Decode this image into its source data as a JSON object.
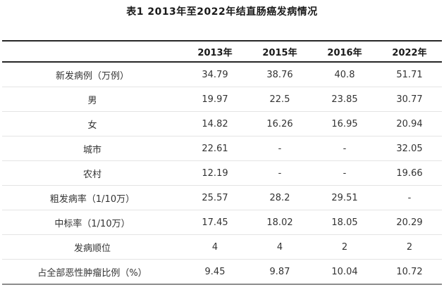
{
  "chart_data": {
    "type": "table",
    "title": "表1 2013年至2022年结直肠癌发病情况",
    "columns": [
      "",
      "2013年",
      "2015年",
      "2016年",
      "2022年"
    ],
    "rows": [
      {
        "label": "新发病例（万例）",
        "values": [
          "34.79",
          "38.76",
          "40.8",
          "51.71"
        ]
      },
      {
        "label": "男",
        "values": [
          "19.97",
          "22.5",
          "23.85",
          "30.77"
        ]
      },
      {
        "label": "女",
        "values": [
          "14.82",
          "16.26",
          "16.95",
          "20.94"
        ]
      },
      {
        "label": "城市",
        "values": [
          "22.61",
          "-",
          "-",
          "32.05"
        ]
      },
      {
        "label": "农村",
        "values": [
          "12.19",
          "-",
          "-",
          "19.66"
        ]
      },
      {
        "label": "粗发病率（1/10万）",
        "values": [
          "25.57",
          "28.2",
          "29.51",
          "-"
        ]
      },
      {
        "label": "中标率（1/10万）",
        "values": [
          "17.45",
          "18.02",
          "18.05",
          "20.29"
        ]
      },
      {
        "label": "发病顺位",
        "values": [
          "4",
          "4",
          "2",
          "2"
        ]
      },
      {
        "label": "占全部恶性肿瘤比例（%）",
        "values": [
          "9.45",
          "9.87",
          "10.04",
          "10.72"
        ]
      }
    ],
    "layout": {
      "header_bold": true,
      "grid": "horizontal-rules-only",
      "top_rule_color": "#262626",
      "header_rule_color": "#262626",
      "row_rule_color": "#e4e4e4",
      "bottom_rule_color": "#8c8c8c",
      "text_color": "#333333",
      "background": "#ffffff"
    }
  }
}
